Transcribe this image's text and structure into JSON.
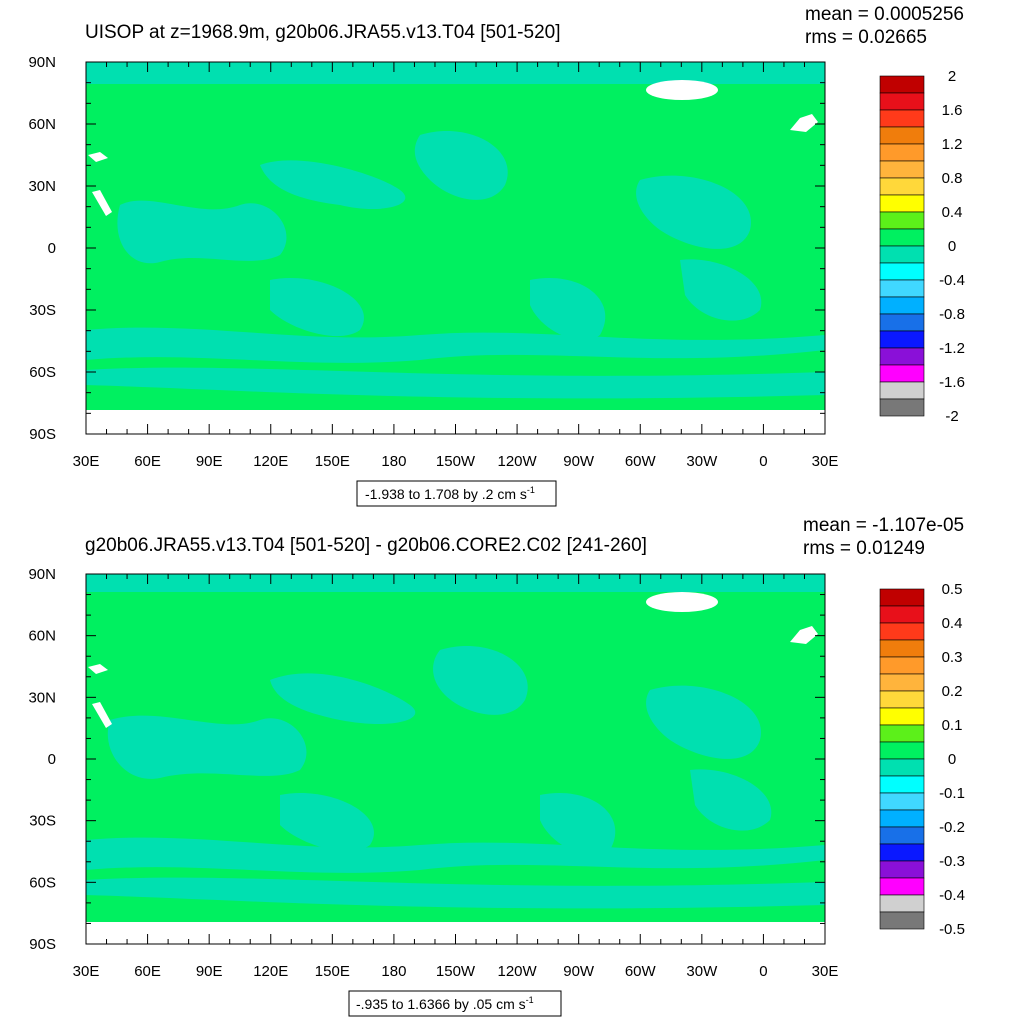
{
  "chart_data": [
    {
      "type": "heatmap",
      "title": "UISOP at z=1968.9m, g20b06.JRA55.v13.T04 [501-520]",
      "stats": [
        "mean = 0.0005256",
        "rms = 0.02665"
      ],
      "x_ticks": [
        "30E",
        "60E",
        "90E",
        "120E",
        "150E",
        "180",
        "150W",
        "120W",
        "90W",
        "60W",
        "30W",
        "0",
        "30E"
      ],
      "y_ticks": [
        "90N",
        "60N",
        "30N",
        "0",
        "30S",
        "60S",
        "90S"
      ],
      "lon_range": [
        30,
        390
      ],
      "lat_range": [
        -90,
        90
      ],
      "info_box": "-1.938 to 1.708 by .2 cm s",
      "info_box_sup": "-1",
      "colorbar": {
        "labels": [
          "2",
          "1.6",
          "1.2",
          "0.8",
          "0.4",
          "0",
          "-0.4",
          "-0.8",
          "-1.2",
          "-1.6",
          "-2"
        ],
        "colors": [
          "#c00000",
          "#e8101a",
          "#ff3a1a",
          "#f07d0c",
          "#ff9a2a",
          "#ffb43c",
          "#ffd83a",
          "#ffff00",
          "#5cf01a",
          "#00f060",
          "#00e0b0",
          "#00ffff",
          "#40d8ff",
          "#00b0ff",
          "#1870e8",
          "#0a18ff",
          "#8a10d8",
          "#ff00ff",
          "#d0d0d0",
          "#787878"
        ]
      }
    },
    {
      "type": "heatmap",
      "title": "g20b06.JRA55.v13.T04 [501-520] - g20b06.CORE2.C02 [241-260]",
      "stats": [
        "mean = -1.107e-05",
        "rms = 0.01249"
      ],
      "x_ticks": [
        "30E",
        "60E",
        "90E",
        "120E",
        "150E",
        "180",
        "150W",
        "120W",
        "90W",
        "60W",
        "30W",
        "0",
        "30E"
      ],
      "y_ticks": [
        "90N",
        "60N",
        "30N",
        "0",
        "30S",
        "60S",
        "90S"
      ],
      "lon_range": [
        30,
        390
      ],
      "lat_range": [
        -90,
        90
      ],
      "info_box": "-.935 to 1.6366 by .05 cm s",
      "info_box_sup": "-1",
      "colorbar": {
        "labels": [
          "0.5",
          "0.4",
          "0.3",
          "0.2",
          "0.1",
          "0",
          "-0.1",
          "-0.2",
          "-0.3",
          "-0.4",
          "-0.5"
        ],
        "colors": [
          "#c00000",
          "#e8101a",
          "#ff3a1a",
          "#f07d0c",
          "#ff9a2a",
          "#ffb43c",
          "#ffd83a",
          "#ffff00",
          "#5cf01a",
          "#00f060",
          "#00e0b0",
          "#00ffff",
          "#40d8ff",
          "#00b0ff",
          "#1870e8",
          "#0a18ff",
          "#8a10d8",
          "#ff00ff",
          "#d0d0d0",
          "#787878"
        ]
      }
    }
  ],
  "colors": {
    "ocean_zero": "#00f060",
    "ocean_neg": "#00e0b0",
    "land": "#ffffff"
  }
}
